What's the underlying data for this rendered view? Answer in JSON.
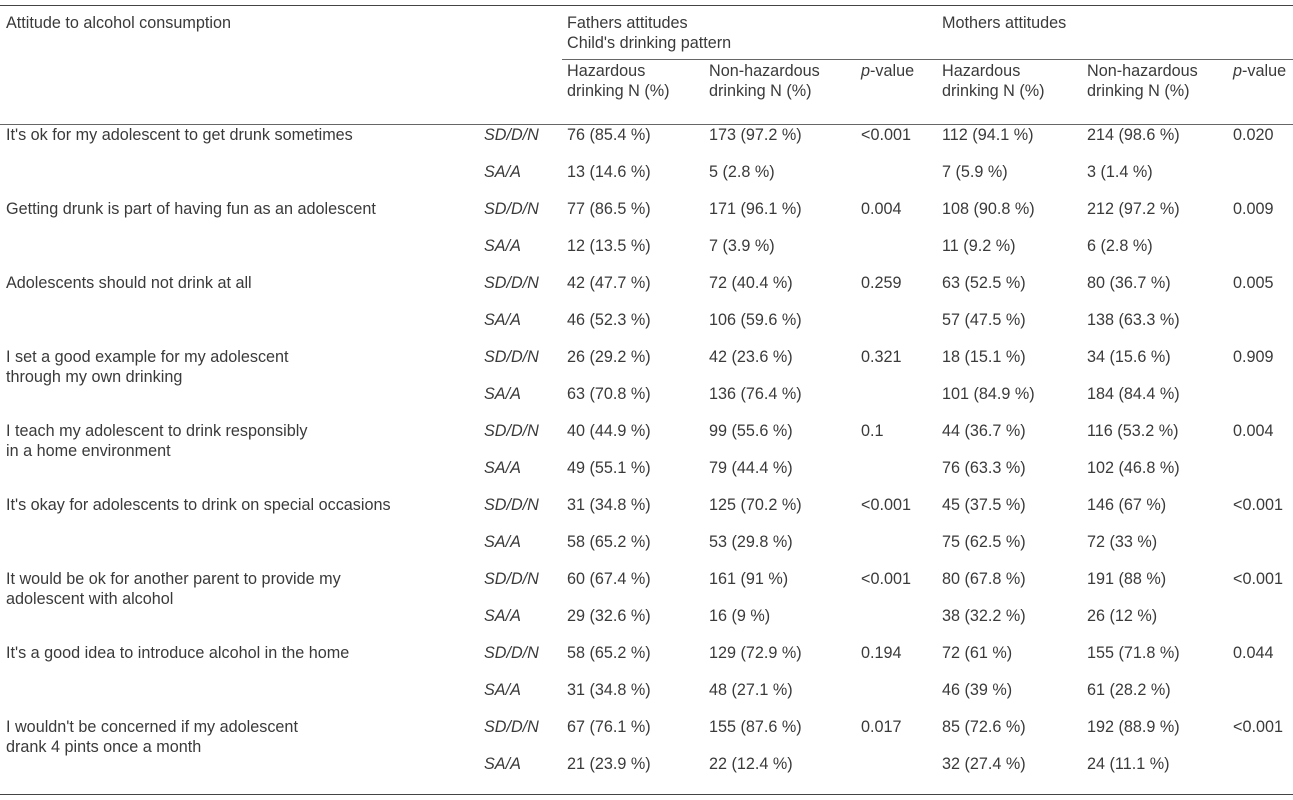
{
  "table": {
    "header": {
      "attitude": "Attitude to alcohol consumption",
      "fathers_line1": "Fathers attitudes",
      "fathers_line2": "Child's drinking pattern",
      "mothers": "Mothers attitudes",
      "hazardous_l1": "Hazardous",
      "hazardous_l2": "drinking N (%)",
      "nonhazardous_l1": "Non-hazardous",
      "nonhazardous_l2": "drinking N (%)",
      "p_italic": "p",
      "p_suffix": "-value"
    },
    "rows": [
      {
        "label1": "It's ok for my adolescent to get drunk sometimes",
        "label2": "",
        "sub1": "SD/D/N",
        "sub2": "SA/A",
        "f_h1": "76 (85.4 %)",
        "f_n1": "173 (97.2 %)",
        "f_p": "<0.001",
        "m_h1": "112 (94.1 %)",
        "m_n1": "214 (98.6 %)",
        "m_p": "0.020",
        "f_h2": "13 (14.6 %)",
        "f_n2": "5 (2.8 %)",
        "m_h2": "7 (5.9 %)",
        "m_n2": "3 (1.4 %)"
      },
      {
        "label1": "Getting drunk is part of having fun as an adolescent",
        "label2": "",
        "sub1": "SD/D/N",
        "sub2": "SA/A",
        "f_h1": "77 (86.5 %)",
        "f_n1": "171 (96.1 %)",
        "f_p": "0.004",
        "m_h1": "108 (90.8 %)",
        "m_n1": "212 (97.2 %)",
        "m_p": "0.009",
        "f_h2": "12 (13.5 %)",
        "f_n2": "7 (3.9 %)",
        "m_h2": "11 (9.2 %)",
        "m_n2": "6 (2.8 %)"
      },
      {
        "label1": "Adolescents should not drink at all",
        "label2": "",
        "sub1": "SD/D/N",
        "sub2": "SA/A",
        "f_h1": "42 (47.7 %)",
        "f_n1": "72 (40.4 %)",
        "f_p": "0.259",
        "m_h1": "63 (52.5 %)",
        "m_n1": "80 (36.7 %)",
        "m_p": "0.005",
        "f_h2": "46 (52.3 %)",
        "f_n2": "106 (59.6 %)",
        "m_h2": "57 (47.5 %)",
        "m_n2": "138 (63.3 %)"
      },
      {
        "label1": "I set a good example for my adolescent",
        "label2": "through my own drinking",
        "sub1": "SD/D/N",
        "sub2": "SA/A",
        "f_h1": "26 (29.2 %)",
        "f_n1": "42 (23.6 %)",
        "f_p": "0.321",
        "m_h1": "18 (15.1 %)",
        "m_n1": "34 (15.6 %)",
        "m_p": "0.909",
        "f_h2": "63 (70.8 %)",
        "f_n2": "136 (76.4 %)",
        "m_h2": "101 (84.9 %)",
        "m_n2": "184 (84.4 %)"
      },
      {
        "label1": "I teach my adolescent to drink responsibly",
        "label2": "in a home environment",
        "sub1": "SD/D/N",
        "sub2": "SA/A",
        "f_h1": "40 (44.9 %)",
        "f_n1": "99 (55.6 %)",
        "f_p": "0.1",
        "m_h1": "44 (36.7 %)",
        "m_n1": "116 (53.2 %)",
        "m_p": "0.004",
        "f_h2": "49 (55.1 %)",
        "f_n2": "79 (44.4 %)",
        "m_h2": "76 (63.3 %)",
        "m_n2": "102 (46.8 %)"
      },
      {
        "label1": "It's okay for adolescents to drink on special occasions",
        "label2": "",
        "sub1": "SD/D/N",
        "sub2": "SA/A",
        "f_h1": "31 (34.8 %)",
        "f_n1": "125 (70.2 %)",
        "f_p": "<0.001",
        "m_h1": "45 (37.5 %)",
        "m_n1": "146 (67 %)",
        "m_p": "<0.001",
        "f_h2": "58 (65.2 %)",
        "f_n2": "53 (29.8 %)",
        "m_h2": "75 (62.5 %)",
        "m_n2": "72 (33 %)"
      },
      {
        "label1": "It would be ok for another parent to provide my",
        "label2": "adolescent with alcohol",
        "sub1": "SD/D/N",
        "sub2": "SA/A",
        "f_h1": "60 (67.4 %)",
        "f_n1": "161 (91 %)",
        "f_p": "<0.001",
        "m_h1": "80 (67.8 %)",
        "m_n1": "191 (88 %)",
        "m_p": "<0.001",
        "f_h2": "29 (32.6 %)",
        "f_n2": "16 (9 %)",
        "m_h2": "38 (32.2 %)",
        "m_n2": "26 (12 %)"
      },
      {
        "label1": "It's a good idea to introduce alcohol in the home",
        "label2": "",
        "sub1": "SD/D/N",
        "sub2": "SA/A",
        "f_h1": "58 (65.2 %)",
        "f_n1": "129 (72.9 %)",
        "f_p": "0.194",
        "m_h1": "72 (61 %)",
        "m_n1": "155 (71.8 %)",
        "m_p": "0.044",
        "f_h2": "31 (34.8 %)",
        "f_n2": "48 (27.1 %)",
        "m_h2": "46 (39 %)",
        "m_n2": "61 (28.2 %)"
      },
      {
        "label1": "I wouldn't be concerned if my adolescent",
        "label2": "drank 4 pints once a month",
        "sub1": "SD/D/N",
        "sub2": "SA/A",
        "f_h1": "67 (76.1 %)",
        "f_n1": "155 (87.6 %)",
        "f_p": "0.017",
        "m_h1": "85 (72.6 %)",
        "m_n1": "192 (88.9 %)",
        "m_p": "<0.001",
        "f_h2": "21 (23.9 %)",
        "f_n2": "22 (12.4 %)",
        "m_h2": "32 (27.4 %)",
        "m_n2": "24 (11.1 %)"
      }
    ]
  }
}
